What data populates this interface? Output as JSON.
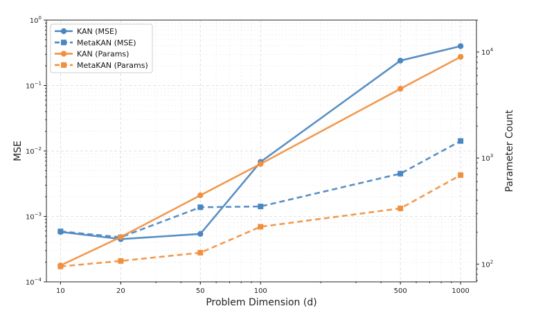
{
  "chart_data": {
    "type": "line",
    "xlabel": "Problem Dimension (d)",
    "ylabel": "MSE",
    "y2label": "Parameter Count",
    "xscale": "log",
    "yscale": "log",
    "y2scale": "log",
    "x": [
      10,
      20,
      50,
      100,
      500,
      1000
    ],
    "x_ticks": [
      "10",
      "20",
      "50",
      "100",
      "500",
      "1000"
    ],
    "ylim": [
      0.0001,
      1
    ],
    "y_ticks": [
      {
        "value": 0.0001,
        "base": "10",
        "exp": "−4"
      },
      {
        "value": 0.001,
        "base": "10",
        "exp": "−3"
      },
      {
        "value": 0.01,
        "base": "10",
        "exp": "−2"
      },
      {
        "value": 0.1,
        "base": "10",
        "exp": "−1"
      },
      {
        "value": 1,
        "base": "10",
        "exp": "0"
      }
    ],
    "y2lim": [
      68,
      20000
    ],
    "y2_ticks": [
      {
        "value": 100,
        "base": "10",
        "exp": "2"
      },
      {
        "value": 1000,
        "base": "10",
        "exp": "3"
      },
      {
        "value": 10000,
        "base": "10",
        "exp": "4"
      }
    ],
    "grid": true,
    "legend_position": "top-left",
    "series": [
      {
        "name": "KAN (MSE)",
        "axis": "left",
        "color": "#4a86c0",
        "marker": "circle",
        "dashed": false,
        "values": [
          0.00058,
          0.00045,
          0.00054,
          0.0068,
          0.24,
          0.4
        ]
      },
      {
        "name": "MetaKAN (MSE)",
        "axis": "left",
        "color": "#4a86c0",
        "marker": "square",
        "dashed": true,
        "values": [
          0.00059,
          0.00048,
          0.00138,
          0.00142,
          0.0045,
          0.0142
        ]
      },
      {
        "name": "KAN (Params)",
        "axis": "right",
        "color": "#f0903f",
        "marker": "circle",
        "dashed": false,
        "values": [
          97,
          180,
          445,
          880,
          4500,
          9000
        ]
      },
      {
        "name": "MetaKAN (Params)",
        "axis": "right",
        "color": "#f0903f",
        "marker": "square",
        "dashed": true,
        "values": [
          95,
          107,
          128,
          225,
          335,
          690
        ]
      }
    ]
  }
}
